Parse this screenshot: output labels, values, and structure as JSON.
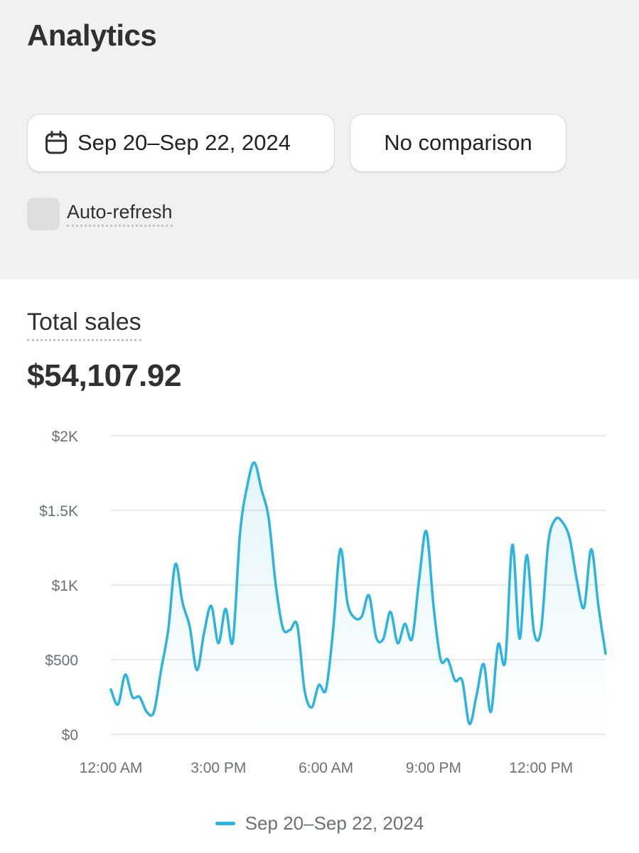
{
  "page": {
    "title": "Analytics"
  },
  "filters": {
    "date_range_label": "Sep 20–Sep 22, 2024",
    "date_icon": "calendar-icon",
    "comparison_label": "No comparison",
    "auto_refresh_label": "Auto-refresh",
    "auto_refresh_checked": false
  },
  "metric": {
    "title": "Total sales",
    "value": "$54,107.92"
  },
  "colors": {
    "series": "#2cb4e0",
    "background_top": "#f1f1f1",
    "grid": "#e3e3e3"
  },
  "chart_data": {
    "type": "line",
    "ylim": [
      0,
      2000
    ],
    "y_ticks": [
      {
        "value": 2000,
        "label": "$2K"
      },
      {
        "value": 1500,
        "label": "$1.5K"
      },
      {
        "value": 1000,
        "label": "$1K"
      },
      {
        "value": 500,
        "label": "$500"
      },
      {
        "value": 0,
        "label": "$0"
      }
    ],
    "xlim": [
      0,
      69
    ],
    "x_ticks": [
      {
        "value": 0,
        "label": "12:00 AM"
      },
      {
        "value": 15,
        "label": "3:00 PM"
      },
      {
        "value": 30,
        "label": "6:00 AM"
      },
      {
        "value": 45,
        "label": "9:00 PM"
      },
      {
        "value": 60,
        "label": "12:00 PM"
      }
    ],
    "legend_position": "bottom",
    "grid": true,
    "series": [
      {
        "name": "Sep 20–Sep 22, 2024",
        "x": [
          0,
          1,
          2,
          3,
          4,
          5,
          6,
          7,
          8,
          9,
          10,
          11,
          12,
          13,
          14,
          15,
          16,
          17,
          18,
          19,
          20,
          21,
          22,
          23,
          24,
          25,
          26,
          27,
          28,
          29,
          30,
          31,
          32,
          33,
          34,
          35,
          36,
          37,
          38,
          39,
          40,
          41,
          42,
          43,
          44,
          45,
          46,
          47,
          48,
          49,
          50,
          51,
          52,
          53,
          54,
          55,
          56,
          57,
          58,
          59,
          60,
          61,
          62,
          63,
          64,
          65,
          66,
          67,
          68,
          69
        ],
        "values": [
          300,
          200,
          400,
          250,
          250,
          150,
          150,
          430,
          700,
          1140,
          880,
          720,
          430,
          680,
          860,
          610,
          840,
          620,
          1340,
          1660,
          1820,
          1640,
          1450,
          1000,
          710,
          700,
          730,
          300,
          180,
          330,
          300,
          700,
          1240,
          880,
          780,
          790,
          930,
          650,
          640,
          820,
          610,
          740,
          640,
          1040,
          1360,
          860,
          500,
          500,
          360,
          360,
          70,
          260,
          470,
          150,
          600,
          490,
          1270,
          640,
          1200,
          690,
          700,
          1280,
          1440,
          1420,
          1310,
          1030,
          850,
          1240,
          860,
          540
        ]
      }
    ]
  },
  "legend": {
    "label": "Sep 20–Sep 22, 2024"
  }
}
